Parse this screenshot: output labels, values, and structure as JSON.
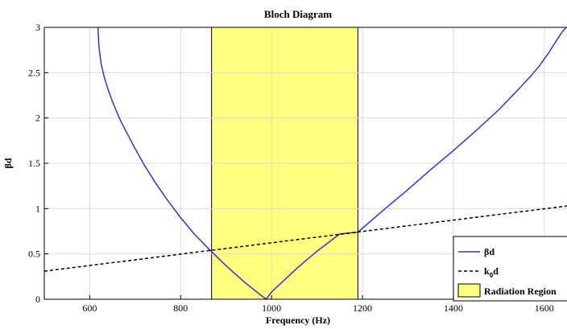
{
  "chart_data": {
    "type": "line",
    "title": "Bloch Diagram",
    "xlabel": "Frequency (Hz)",
    "ylabel": "βd",
    "xlim": [
      500,
      1650
    ],
    "ylim": [
      0,
      3
    ],
    "xticks": [
      600,
      800,
      1000,
      1200,
      1400,
      1600
    ],
    "yticks": [
      0,
      0.5,
      1,
      1.5,
      2,
      2.5,
      3
    ],
    "ytick_labels": [
      "0",
      "0.5",
      "1",
      "1.5",
      "2",
      "2.5",
      "3"
    ],
    "grid": true,
    "legend_position": "bottom-right",
    "colors": {
      "beta": "#3333cc",
      "k0": "#000000",
      "region_fill": "#ffff80",
      "region_edge": "#000000",
      "grid": "#d9d9d9"
    },
    "series": [
      {
        "name": "βd",
        "style": "solid",
        "x": [
          618,
          620,
          625,
          632,
          640,
          650,
          665,
          680,
          700,
          720,
          745,
          770,
          800,
          830,
          865,
          900,
          940,
          970,
          988,
          1000,
          1030,
          1060,
          1100,
          1150,
          1190,
          1250,
          1300,
          1350,
          1400,
          1450,
          1500,
          1540,
          1570,
          1590,
          1610,
          1625,
          1638,
          1648
        ],
        "y": [
          3.0,
          2.8,
          2.6,
          2.45,
          2.32,
          2.18,
          2.0,
          1.85,
          1.66,
          1.48,
          1.28,
          1.1,
          0.9,
          0.72,
          0.54,
          0.37,
          0.19,
          0.07,
          0.0,
          0.08,
          0.22,
          0.36,
          0.53,
          0.72,
          0.74,
          1.0,
          1.21,
          1.43,
          1.64,
          1.86,
          2.09,
          2.3,
          2.46,
          2.58,
          2.72,
          2.84,
          2.94,
          3.0
        ]
      },
      {
        "name": "k",
        "name_subscript": "0",
        "name_suffix": "d",
        "style": "dashed",
        "x": [
          500,
          1650
        ],
        "y": [
          0.31,
          1.03
        ]
      }
    ],
    "regions": [
      {
        "name": "Radiation Region",
        "x_start": 868,
        "x_end": 1190
      }
    ]
  }
}
